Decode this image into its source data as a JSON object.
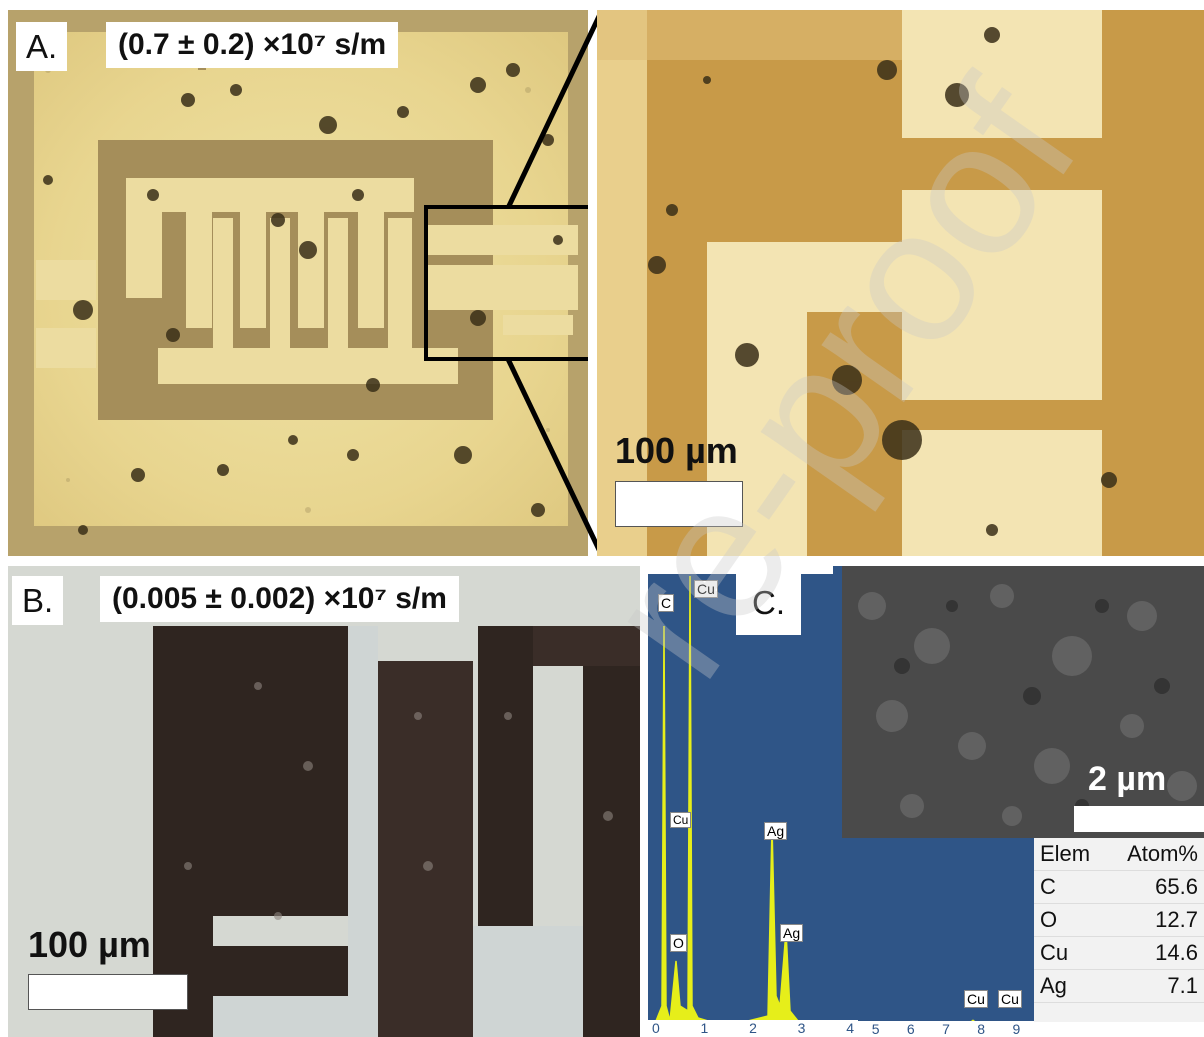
{
  "panelA": {
    "label": "A.",
    "conductivity": "(0.7 ± 0.2) ×10⁷ s/m",
    "scale_label": "100 µm"
  },
  "panelB": {
    "label": "B.",
    "conductivity": "(0.005 ± 0.002) ×10⁷ s/m",
    "scale_label": "100 µm"
  },
  "panelC": {
    "label": "C.",
    "sem_scale_label": "2 µm",
    "spectrum": {
      "x_ticks": [
        "0",
        "1",
        "2",
        "3",
        "4",
        "5",
        "6",
        "7",
        "8",
        "9"
      ],
      "peak_labels": [
        "C",
        "Cu",
        "Cu",
        "O",
        "Ag",
        "Ag",
        "Cu",
        "Cu"
      ]
    },
    "table": {
      "headers": [
        "Elem",
        "Atom%"
      ],
      "rows": [
        {
          "elem": "C",
          "atom": "65.6"
        },
        {
          "elem": "O",
          "atom": "12.7"
        },
        {
          "elem": "Cu",
          "atom": "14.6"
        },
        {
          "elem": "Ag",
          "atom": "7.1"
        }
      ]
    }
  },
  "watermark": "re-proof",
  "colors": {
    "spectrum_bg": "#2f5587",
    "spectrum_fill": "#e6ee1a",
    "electrode_light": "#efe3a6",
    "substrate_brown": "#c89a48"
  }
}
